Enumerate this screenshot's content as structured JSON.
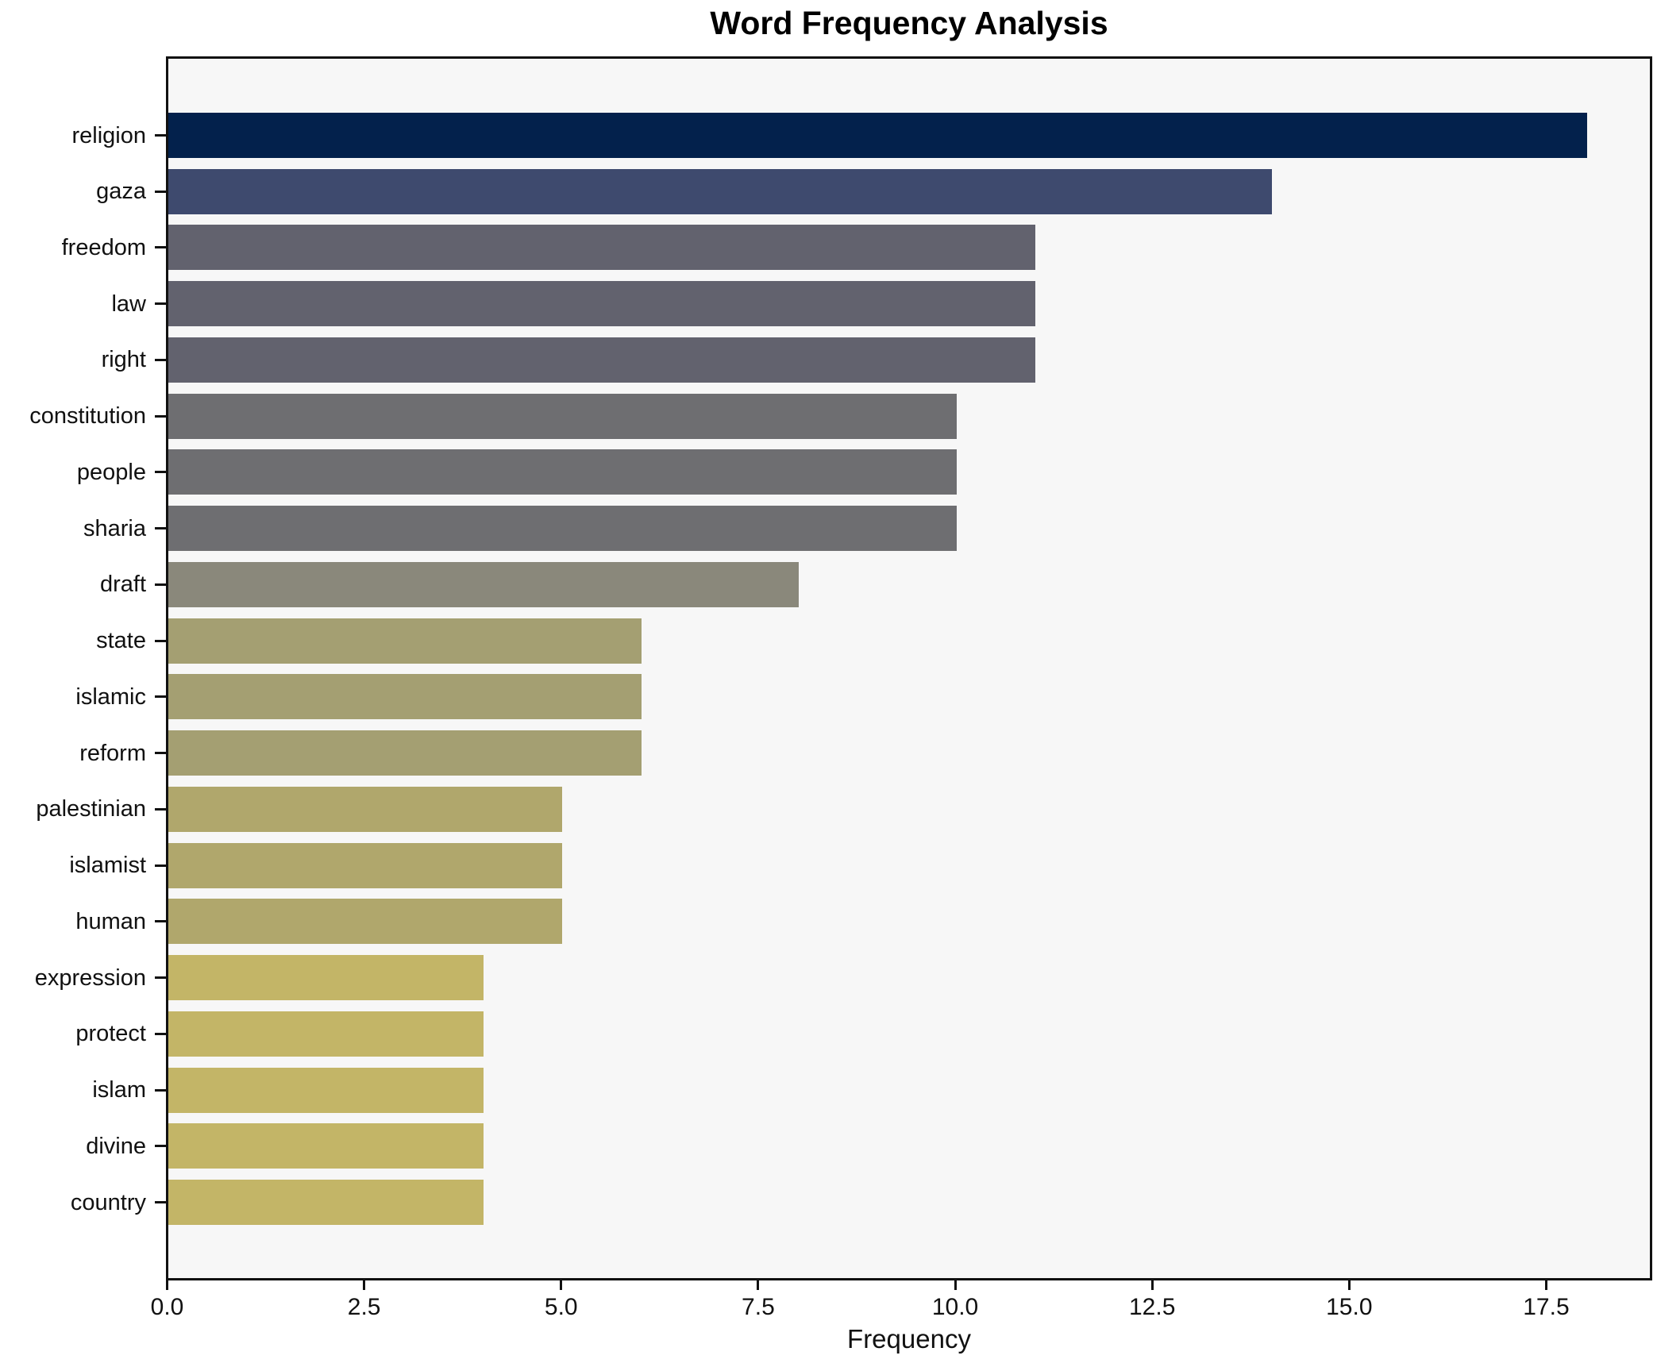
{
  "chart_data": {
    "type": "bar",
    "orientation": "horizontal",
    "title": "Word Frequency Analysis",
    "xlabel": "Frequency",
    "ylabel": "",
    "categories": [
      "religion",
      "gaza",
      "freedom",
      "law",
      "right",
      "constitution",
      "people",
      "sharia",
      "draft",
      "state",
      "islamic",
      "reform",
      "palestinian",
      "islamist",
      "human",
      "expression",
      "protect",
      "islam",
      "divine",
      "country"
    ],
    "values": [
      18,
      14,
      11,
      11,
      11,
      10,
      10,
      10,
      8,
      6,
      6,
      6,
      5,
      5,
      5,
      4,
      4,
      4,
      4,
      4
    ],
    "bar_colors": [
      "#03214c",
      "#3e4a6e",
      "#62626e",
      "#62626e",
      "#62626e",
      "#6e6e71",
      "#6e6e71",
      "#6e6e71",
      "#8a887b",
      "#a49f72",
      "#a49f72",
      "#a49f72",
      "#b0a76c",
      "#b0a76c",
      "#b0a76c",
      "#c3b567",
      "#c3b567",
      "#c3b567",
      "#c3b567",
      "#c3b567"
    ],
    "xticks": [
      "0.0",
      "2.5",
      "5.0",
      "7.5",
      "10.0",
      "12.5",
      "15.0",
      "17.5"
    ],
    "xtick_values": [
      0,
      2.5,
      5,
      7.5,
      10,
      12.5,
      15,
      17.5
    ],
    "xlim": [
      0,
      18.8
    ],
    "grid": false,
    "legend_position": "none",
    "plot_background": "#f7f7f7",
    "figure_background": "#ffffff"
  }
}
